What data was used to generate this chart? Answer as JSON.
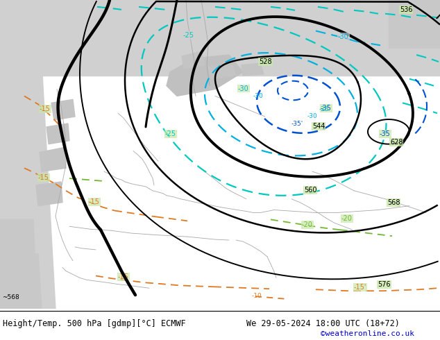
{
  "title_left": "Height/Temp. 500 hPa [gdmp][°C] ECMWF",
  "title_right": "We 29-05-2024 18:00 UTC (18+72)",
  "credit": "©weatheronline.co.uk",
  "bg_gray": "#d0d0d0",
  "land_green": "#c8e8a8",
  "land_green2": "#b8e090",
  "gray_patch": "#b8b8b8",
  "border_color": "#a8a8a8",
  "bottom_bg": "#ffffff",
  "text_color": "#000000",
  "credit_color": "#0000cc",
  "title_fontsize": 8.5,
  "credit_fontsize": 8,
  "fig_width": 6.34,
  "fig_height": 4.9,
  "cyan_temp": "#00c8c0",
  "blue_temp": "#0050d0",
  "mid_cyan": "#00b0e0",
  "orange_temp": "#e07820",
  "green_temp": "#70b830"
}
